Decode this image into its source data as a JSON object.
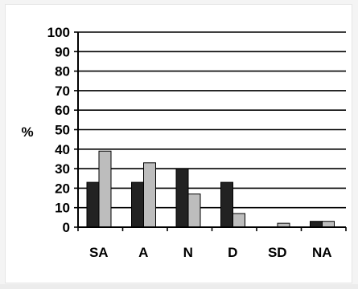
{
  "chart_data": {
    "type": "bar",
    "title": "",
    "xlabel": "",
    "ylabel": "%",
    "ylim": [
      0,
      100
    ],
    "yticks": [
      0,
      10,
      20,
      30,
      40,
      50,
      60,
      70,
      80,
      90,
      100
    ],
    "grid": true,
    "legend": "none",
    "categories": [
      "SA",
      "A",
      "N",
      "D",
      "SD",
      "NA"
    ],
    "series": [
      {
        "values": [
          23,
          23,
          30,
          23,
          0,
          3
        ],
        "color": "#222222"
      },
      {
        "values": [
          39,
          33,
          17,
          7,
          2,
          3
        ],
        "color": "#bdbdbd"
      }
    ]
  }
}
